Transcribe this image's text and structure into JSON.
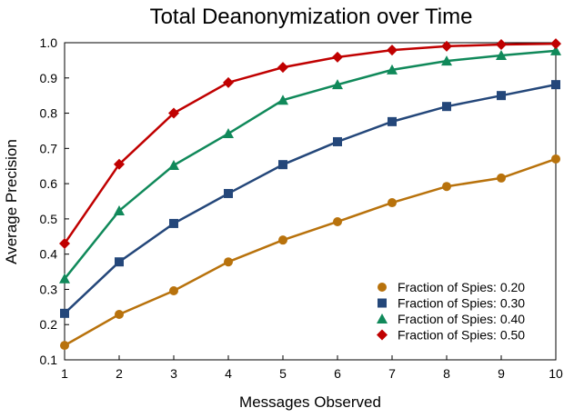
{
  "chart_data": {
    "type": "line",
    "title": "Total Deanonymization over Time",
    "xlabel": "Messages Observed",
    "ylabel": "Average Precision",
    "x": [
      1,
      2,
      3,
      4,
      5,
      6,
      7,
      8,
      9,
      10
    ],
    "xlim": [
      1,
      10
    ],
    "ylim": [
      0.1,
      1.0
    ],
    "xticks": [
      "1",
      "2",
      "3",
      "4",
      "5",
      "6",
      "7",
      "8",
      "9",
      "10"
    ],
    "yticks": [
      "0.1",
      "0.2",
      "0.3",
      "0.4",
      "0.5",
      "0.6",
      "0.7",
      "0.8",
      "0.9",
      "1.0"
    ],
    "grid": false,
    "legend_position": "bottom-right",
    "series": [
      {
        "name": "Fraction of Spies: 0.20",
        "color": "#b8720c",
        "marker": "circle",
        "values": [
          0.141,
          0.229,
          0.296,
          0.378,
          0.44,
          0.492,
          0.546,
          0.592,
          0.616,
          0.67
        ]
      },
      {
        "name": "Fraction of Spies: 0.30",
        "color": "#24477a",
        "marker": "square",
        "values": [
          0.232,
          0.378,
          0.487,
          0.572,
          0.654,
          0.719,
          0.776,
          0.819,
          0.85,
          0.881
        ]
      },
      {
        "name": "Fraction of Spies: 0.40",
        "color": "#10895a",
        "marker": "triangle",
        "values": [
          0.33,
          0.523,
          0.652,
          0.742,
          0.837,
          0.881,
          0.923,
          0.948,
          0.964,
          0.977
        ]
      },
      {
        "name": "Fraction of Spies: 0.50",
        "color": "#c00000",
        "marker": "diamond",
        "values": [
          0.43,
          0.655,
          0.8,
          0.887,
          0.93,
          0.959,
          0.979,
          0.99,
          0.995,
          0.997
        ]
      }
    ]
  }
}
